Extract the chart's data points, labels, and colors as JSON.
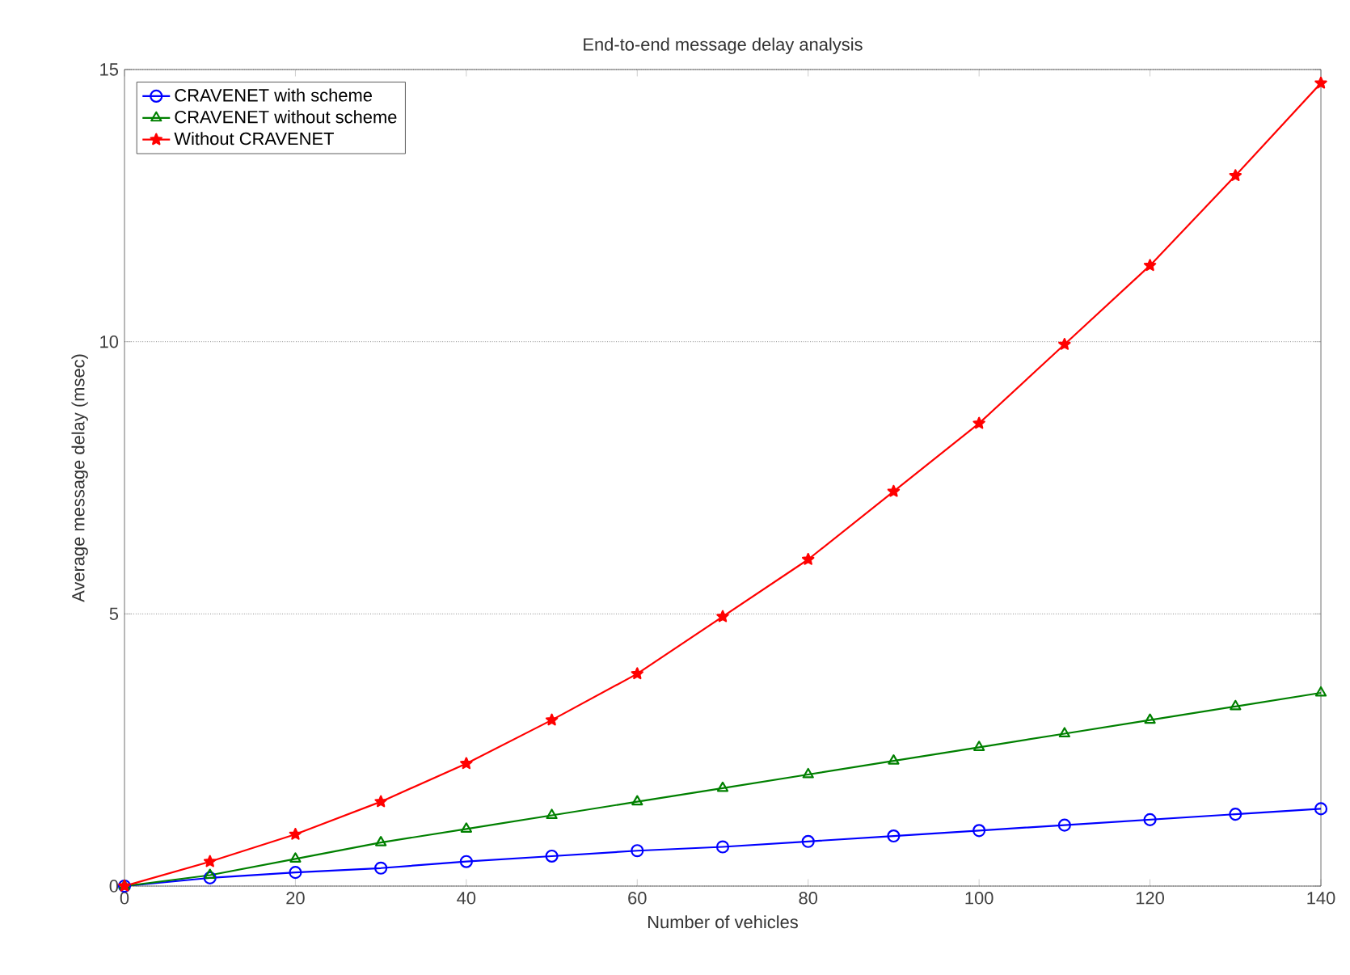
{
  "chart_data": {
    "type": "line",
    "title": "End-to-end message delay analysis",
    "xlabel": "Number of vehicles",
    "ylabel": "Average message delay (msec)",
    "x": [
      0,
      10,
      20,
      30,
      40,
      50,
      60,
      70,
      80,
      90,
      100,
      110,
      120,
      130,
      140
    ],
    "series": [
      {
        "name": "CRAVENET with scheme",
        "color": "#0000ff",
        "marker": "circle",
        "values": [
          0,
          0.15,
          0.25,
          0.33,
          0.45,
          0.55,
          0.65,
          0.72,
          0.82,
          0.92,
          1.02,
          1.12,
          1.22,
          1.32,
          1.42
        ]
      },
      {
        "name": "CRAVENET without scheme",
        "color": "#008000",
        "marker": "triangle",
        "values": [
          0,
          0.2,
          0.5,
          0.8,
          1.05,
          1.3,
          1.55,
          1.8,
          2.05,
          2.3,
          2.55,
          2.8,
          3.05,
          3.3,
          3.55
        ]
      },
      {
        "name": "Without CRAVENET",
        "color": "#ff0000",
        "marker": "star",
        "values": [
          0,
          0.45,
          0.95,
          1.55,
          2.25,
          3.05,
          3.9,
          4.95,
          6.0,
          7.25,
          8.5,
          9.95,
          11.4,
          13.05,
          14.75
        ]
      }
    ],
    "xlim": [
      0,
      140
    ],
    "ylim": [
      0,
      15
    ],
    "xticks": [
      0,
      20,
      40,
      60,
      80,
      100,
      120,
      140
    ],
    "yticks": [
      0,
      5,
      10,
      15
    ],
    "grid": "y",
    "legend": "top left",
    "line_style": "solid"
  }
}
